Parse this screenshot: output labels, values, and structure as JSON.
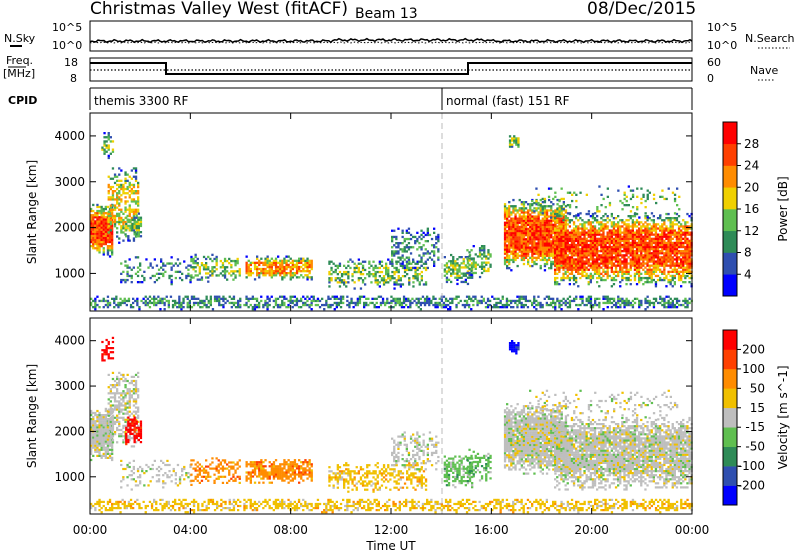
{
  "header": {
    "title": "Christmas Valley West (fitACF)",
    "beam": "Beam 13",
    "date": "08/Dec/2015"
  },
  "sky_panel": {
    "left_label": "N.Sky",
    "right_label": "N.Search",
    "left_ticks": [
      "10^5",
      "10^0"
    ],
    "right_ticks": [
      "10^5",
      "10^0"
    ]
  },
  "freq_panel": {
    "left_label_1": "Freq.",
    "left_label_2": "[MHz]",
    "right_label": "Nave",
    "left_ticks": [
      "18",
      "8"
    ],
    "right_ticks": [
      "60",
      "0"
    ]
  },
  "cpid_panel": {
    "label": "CPID",
    "modes": [
      "themis 3300 RF",
      "normal (fast) 151 RF"
    ],
    "switch_time_hours": 14
  },
  "chart_data": [
    {
      "type": "heatmap",
      "title": "Power",
      "ylabel": "Slant Range [km]",
      "xlabel": "Time UT",
      "ylim": [
        180,
        4500
      ],
      "x_ticks": [
        "00:00",
        "04:00",
        "08:00",
        "12:00",
        "16:00",
        "20:00",
        "00:00"
      ],
      "y_ticks": [
        1000,
        2000,
        3000,
        4000
      ],
      "colorbar_label": "Power [dB]",
      "colorbar_ticks": [
        4,
        8,
        12,
        16,
        20,
        24,
        28
      ],
      "colors": [
        "#0000ff",
        "#2f4fb0",
        "#2e8b57",
        "#5fbf50",
        "#f0d000",
        "#ff8c00",
        "#ff4000",
        "#ff0000"
      ]
    },
    {
      "type": "heatmap",
      "title": "Velocity",
      "ylabel": "Slant Range [km]",
      "xlabel": "Time UT",
      "ylim": [
        180,
        4500
      ],
      "x_ticks": [
        "00:00",
        "04:00",
        "08:00",
        "12:00",
        "16:00",
        "20:00",
        "00:00"
      ],
      "y_ticks": [
        1000,
        2000,
        3000,
        4000
      ],
      "colorbar_label": "Velocity [m s^-1]",
      "colorbar_ticks": [
        200,
        100,
        50,
        15,
        -15,
        -50,
        -100,
        -200
      ],
      "colors": [
        "#0000ff",
        "#2f4fb0",
        "#2e8b57",
        "#5fbf50",
        "#bebebe",
        "#f0c000",
        "#ff8c00",
        "#ff4000",
        "#ff0000"
      ]
    }
  ]
}
